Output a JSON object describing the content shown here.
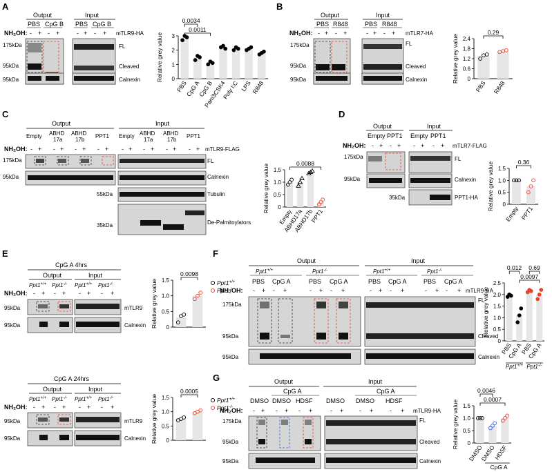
{
  "common": {
    "nh2oh": "NH₂OH:",
    "minus": "-",
    "plus": "+",
    "ylabel": "Relative grey value",
    "fl": "FL",
    "cleaved": "Cleaved",
    "calnexin": "Calnexin",
    "output": "Output",
    "input": "Input"
  },
  "panels": {
    "A": {
      "label": "A",
      "conditions": [
        "PBS",
        "CpG B",
        "PBS",
        "CpG B"
      ],
      "construct": "mTLR9-HA",
      "mw": [
        "175kDa",
        "95kDa",
        "95kDa"
      ],
      "pvals": [
        "0.0011",
        "0.0034"
      ]
    },
    "B": {
      "label": "B",
      "conditions": [
        "PBS",
        "R848",
        "PBS",
        "R848"
      ],
      "construct": "mTLR7-HA",
      "mw": [
        "175kDa",
        "95kDa",
        "95kDa"
      ],
      "pvals": [
        "0.29"
      ]
    },
    "C": {
      "label": "C",
      "groups": [
        "Empty",
        "ABHD\n17a",
        "ABHD\n17b",
        "PPT1"
      ],
      "construct": "mTLR9-FLAG",
      "mw": [
        "175kDa",
        "95kDa",
        "55kDa",
        "35kDa"
      ],
      "bands_extra": [
        "Tubulin",
        "De-Palmitoylators"
      ],
      "pvals": [
        "0.0088"
      ]
    },
    "D": {
      "label": "D",
      "groups": [
        "Empty",
        "PPT1"
      ],
      "construct": "mTLR7-FLAG",
      "mw": [
        "175kDa",
        "95kDa",
        "35kDa"
      ],
      "bands_extra": [
        "PPT1-HA"
      ],
      "pvals": [
        "0.36"
      ]
    },
    "E": {
      "label": "E",
      "title_top": "CpG A 4hrs",
      "title_bottom": "CpG A 24hrs",
      "geno_wt": "Ppt1",
      "geno_wt_sup": "+/+",
      "geno_ko": "Ppt1",
      "geno_ko_sup": "-/-",
      "band": "mTLR9",
      "mw": [
        "95kDa",
        "95kDa"
      ],
      "pvals": [
        "0.0098",
        "0.0005"
      ]
    },
    "F": {
      "label": "F",
      "conditions": [
        "PBS",
        "CpG A",
        "PBS",
        "CpG A"
      ],
      "construct": "mTLR9-HA",
      "mw": [
        "175kDa",
        "95kDa",
        "95kDa"
      ],
      "pvals": [
        "0.0097",
        "0.012",
        "0.69"
      ]
    },
    "G": {
      "label": "G",
      "conditions": [
        "DMSO",
        "DMSO",
        "HDSF"
      ],
      "cpga": "CpG A",
      "construct": "mTLR9-HA",
      "mw": [
        "175kDa",
        "95kDa",
        "95kDa"
      ],
      "pvals": [
        "0.0046",
        "0.0007"
      ]
    }
  },
  "chart_data": [
    {
      "panel": "A",
      "type": "bar",
      "categories": [
        "PBS",
        "CpG A",
        "CpG B",
        "Pam3CSK4",
        "Poly I:C",
        "LPS",
        "R848"
      ],
      "values": [
        2.9,
        1.5,
        1.1,
        2.2,
        2.1,
        2.1,
        1.8
      ],
      "ylabel": "Relative grey value",
      "ylim": [
        0,
        3
      ],
      "ticks": [
        0,
        1,
        2,
        3
      ],
      "colors": [
        "#000000",
        "#000000",
        "#000000",
        "#000000",
        "#000000",
        "#000000",
        "#000000"
      ]
    },
    {
      "panel": "B",
      "type": "bar",
      "categories": [
        "PBS",
        "R848"
      ],
      "values": [
        1.35,
        1.65
      ],
      "ylabel": "Relative grey value",
      "ylim": [
        0,
        2.4
      ],
      "ticks": [
        0,
        0.6,
        1.2,
        1.8,
        2.4
      ],
      "tick_labels": [
        "0",
        "0.6",
        "1.2",
        "1.8",
        "2.4"
      ],
      "colors": [
        "#000000",
        "#e8412c"
      ]
    },
    {
      "panel": "C",
      "type": "bar",
      "categories": [
        "Empty",
        "ABHD17a",
        "ABHD17b",
        "PPT1"
      ],
      "values": [
        1.0,
        1.0,
        1.4,
        0.2
      ],
      "ylabel": "Relative grey value",
      "ylim": [
        0,
        1.5
      ],
      "ticks": [
        0,
        0.5,
        1.0,
        1.5
      ],
      "tick_labels": [
        "0",
        "0.5",
        "1.0",
        "1.5"
      ],
      "colors": [
        "#000000",
        "#000000",
        "#000000",
        "#e8412c"
      ]
    },
    {
      "panel": "D",
      "type": "bar",
      "categories": [
        "Empty",
        "PPT1"
      ],
      "values": [
        1.0,
        0.75
      ],
      "ylabel": "Relative grey value",
      "ylim": [
        0,
        1.5
      ],
      "ticks": [
        0,
        0.5,
        1.0,
        1.5
      ],
      "tick_labels": [
        "0",
        "0.5",
        "1.0",
        "1.5"
      ],
      "colors": [
        "#000000",
        "#e8412c"
      ]
    },
    {
      "panel": "E1",
      "type": "bar",
      "categories": [
        "Ppt1+/+",
        "Ppt1-/-"
      ],
      "values": [
        0.3,
        1.0
      ],
      "ylabel": "Relative grey value",
      "ylim": [
        0,
        1.5
      ],
      "ticks": [
        0,
        0.5,
        1.0,
        1.5
      ],
      "tick_labels": [
        "0",
        "0.5",
        "1.0",
        "1.5"
      ],
      "colors": [
        "#000000",
        "#e8412c"
      ]
    },
    {
      "panel": "E2",
      "type": "bar",
      "categories": [
        "Ppt1+/+",
        "Ppt1-/-"
      ],
      "values": [
        0.75,
        1.0
      ],
      "ylabel": "Relative grey value",
      "ylim": [
        0,
        1.5
      ],
      "ticks": [
        0,
        0.5,
        1.0,
        1.5
      ],
      "tick_labels": [
        "0",
        "0.5",
        "1.0",
        "1.5"
      ],
      "colors": [
        "#000000",
        "#e8412c"
      ]
    },
    {
      "panel": "F",
      "type": "bar",
      "categories": [
        "PBS",
        "CpG A",
        "PBS",
        "CpG A"
      ],
      "values": [
        1.95,
        1.1,
        2.15,
        2.0
      ],
      "ylabel": "Relative grey value",
      "ylim": [
        0,
        2.5
      ],
      "ticks": [
        0,
        0.5,
        1.0,
        1.5,
        2.0,
        2.5
      ],
      "tick_labels": [
        "0",
        "0.5",
        "1.0",
        "1.5",
        "2.0",
        "2.5"
      ],
      "colors": [
        "#000000",
        "#000000",
        "#e8412c",
        "#e8412c"
      ]
    },
    {
      "panel": "G",
      "type": "bar",
      "categories": [
        "DMSO",
        "DMSO",
        "HDSF"
      ],
      "values": [
        1.0,
        0.7,
        1.0
      ],
      "ylabel": "Relative grey value",
      "ylim": [
        0,
        1.5
      ],
      "ticks": [
        0,
        0.5,
        1.0,
        1.5
      ],
      "tick_labels": [
        "0",
        "0.5",
        "1.0",
        "1.5"
      ],
      "colors": [
        "#000000",
        "#3a62e0",
        "#e8412c"
      ]
    }
  ]
}
